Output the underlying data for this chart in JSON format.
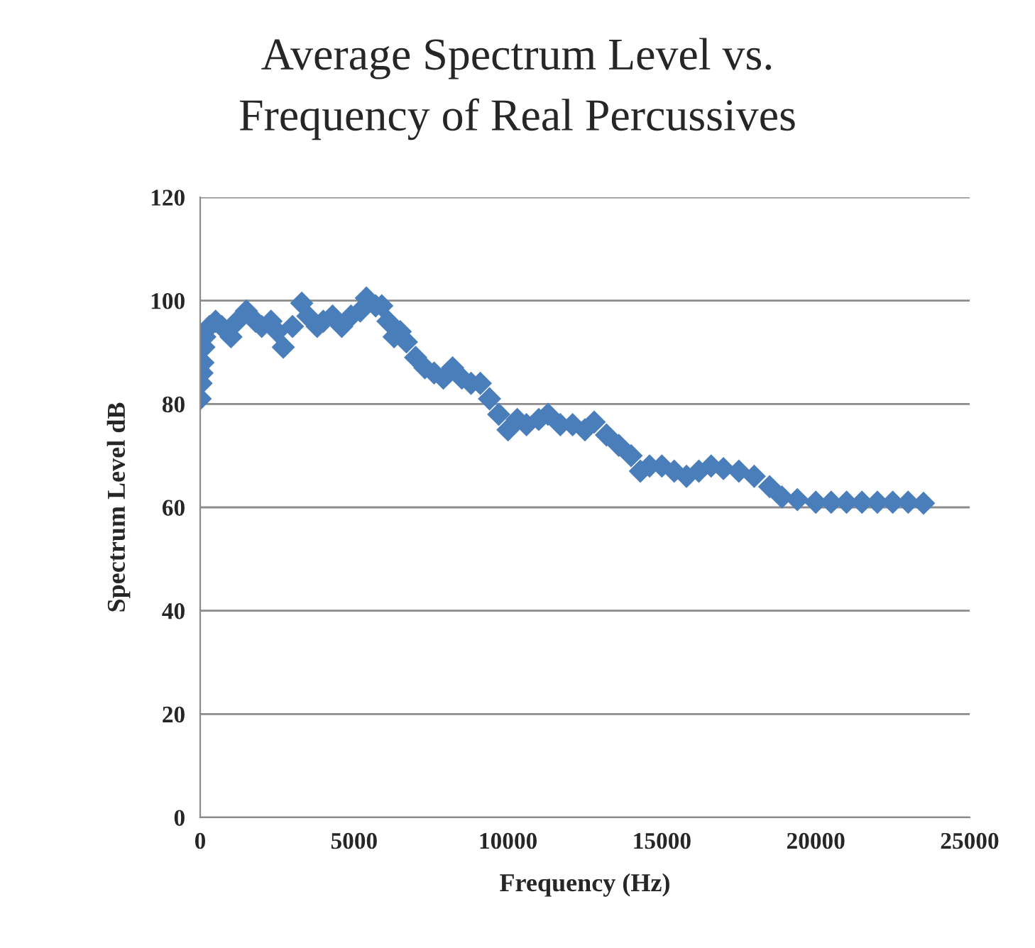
{
  "chart_data": {
    "type": "scatter",
    "title": "Average Spectrum Level vs.\nFrequency of Real Percussives",
    "xlabel": "Frequency (Hz)",
    "ylabel": "Spectrum Level dB",
    "marker": "diamond",
    "grid": "y",
    "xlim": [
      0,
      25000
    ],
    "xticks": [
      0,
      5000,
      10000,
      15000,
      20000,
      25000
    ],
    "ylim": [
      0,
      120
    ],
    "yticks": [
      0,
      20,
      40,
      60,
      80,
      100,
      120
    ],
    "series": [
      {
        "color": "#4a7ebb",
        "x": [
          0,
          30,
          60,
          90,
          120,
          150,
          300,
          500,
          700,
          1000,
          1200,
          1500,
          1800,
          2000,
          2300,
          2500,
          2700,
          3000,
          3300,
          3500,
          3800,
          4000,
          4300,
          4600,
          4900,
          5200,
          5400,
          5700,
          5900,
          6100,
          6300,
          6500,
          6700,
          7000,
          7300,
          7600,
          7900,
          8200,
          8500,
          8800,
          9100,
          9400,
          9700,
          10000,
          10300,
          10600,
          11000,
          11300,
          11700,
          12100,
          12500,
          12800,
          13200,
          13600,
          14000,
          14300,
          14600,
          15000,
          15400,
          15800,
          16200,
          16600,
          17000,
          17500,
          18000,
          18500,
          18900,
          19400,
          20000,
          20500,
          21000,
          21500,
          22000,
          22500,
          23000,
          23500
        ],
        "values": [
          81,
          84,
          86,
          88,
          91,
          93,
          95,
          96,
          95,
          93,
          96,
          98,
          96,
          95,
          96,
          94,
          91,
          95,
          99.5,
          97,
          95,
          96,
          97,
          95,
          97,
          98,
          100.5,
          99,
          99,
          96,
          93,
          94,
          92,
          89,
          87,
          86,
          85,
          87,
          85,
          84,
          84,
          81,
          78,
          75,
          77,
          76,
          77,
          78,
          76,
          76,
          75,
          76.5,
          74,
          72,
          70,
          67,
          68,
          68,
          67,
          66,
          67,
          68,
          67.5,
          67,
          66,
          64,
          62,
          61.5,
          61,
          61,
          61,
          61,
          61,
          61,
          61,
          60.8
        ]
      }
    ]
  }
}
